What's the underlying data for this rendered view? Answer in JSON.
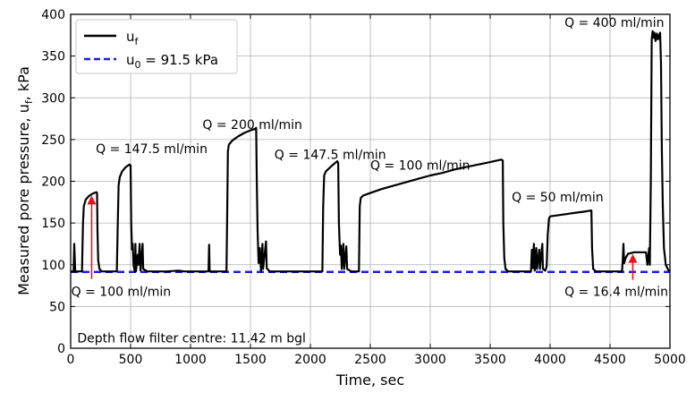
{
  "chart_data": {
    "type": "line",
    "xlabel": "Time, sec",
    "ylabel": "Measured pore pressure, u",
    "ylabel_sub": "f",
    "ylabel_unit": ", kPa",
    "xlim": [
      0,
      5000
    ],
    "ylim": [
      0,
      400
    ],
    "xticks": [
      0,
      500,
      1000,
      1500,
      2000,
      2500,
      3000,
      3500,
      4000,
      4500,
      5000
    ],
    "yticks": [
      0,
      50,
      100,
      150,
      200,
      250,
      300,
      350,
      400
    ],
    "grid": true,
    "legend_position": "top-left",
    "colors": {
      "uf": "#000000",
      "u0": "#1f1fd6",
      "arrow": "#e8141c"
    },
    "series": [
      {
        "name": "u",
        "name_sub": "f",
        "style": "solid",
        "points": [
          [
            0,
            92
          ],
          [
            25,
            92
          ],
          [
            30,
            125
          ],
          [
            38,
            92
          ],
          [
            60,
            92
          ],
          [
            95,
            92
          ],
          [
            98,
            115
          ],
          [
            103,
            150
          ],
          [
            110,
            170
          ],
          [
            125,
            178
          ],
          [
            150,
            182
          ],
          [
            180,
            185
          ],
          [
            215,
            187
          ],
          [
            220,
            186
          ],
          [
            224,
            140
          ],
          [
            230,
            105
          ],
          [
            240,
            95
          ],
          [
            260,
            92
          ],
          [
            385,
            92
          ],
          [
            392,
            140
          ],
          [
            400,
            195
          ],
          [
            410,
            205
          ],
          [
            430,
            212
          ],
          [
            460,
            217
          ],
          [
            490,
            220
          ],
          [
            500,
            219
          ],
          [
            505,
            150
          ],
          [
            512,
            118
          ],
          [
            518,
            125
          ],
          [
            525,
            100
          ],
          [
            535,
            92
          ],
          [
            540,
            125
          ],
          [
            545,
            92
          ],
          [
            560,
            112
          ],
          [
            566,
            100
          ],
          [
            575,
            125
          ],
          [
            583,
            93
          ],
          [
            600,
            125
          ],
          [
            605,
            95
          ],
          [
            640,
            92
          ],
          [
            700,
            92
          ],
          [
            800,
            92
          ],
          [
            900,
            93
          ],
          [
            950,
            92
          ],
          [
            1150,
            92
          ],
          [
            1155,
            124
          ],
          [
            1160,
            92
          ],
          [
            1300,
            92
          ],
          [
            1306,
            160
          ],
          [
            1312,
            236
          ],
          [
            1320,
            244
          ],
          [
            1350,
            249
          ],
          [
            1400,
            254
          ],
          [
            1450,
            258
          ],
          [
            1500,
            261
          ],
          [
            1540,
            263
          ],
          [
            1548,
            264
          ],
          [
            1553,
            200
          ],
          [
            1560,
            140
          ],
          [
            1568,
            102
          ],
          [
            1578,
            120
          ],
          [
            1588,
            92
          ],
          [
            1600,
            125
          ],
          [
            1605,
            95
          ],
          [
            1630,
            128
          ],
          [
            1636,
            96
          ],
          [
            1660,
            92
          ],
          [
            1750,
            92
          ],
          [
            2100,
            92
          ],
          [
            2107,
            170
          ],
          [
            2115,
            207
          ],
          [
            2130,
            212
          ],
          [
            2160,
            216
          ],
          [
            2190,
            220
          ],
          [
            2225,
            224
          ],
          [
            2232,
            222
          ],
          [
            2238,
            150
          ],
          [
            2248,
            112
          ],
          [
            2255,
            123
          ],
          [
            2262,
            95
          ],
          [
            2275,
            125
          ],
          [
            2282,
            95
          ],
          [
            2300,
            122
          ],
          [
            2307,
            95
          ],
          [
            2340,
            92
          ],
          [
            2405,
            92
          ],
          [
            2412,
            170
          ],
          [
            2420,
            180
          ],
          [
            2440,
            183
          ],
          [
            2500,
            186
          ],
          [
            2600,
            191
          ],
          [
            2700,
            195
          ],
          [
            2800,
            199
          ],
          [
            2900,
            203
          ],
          [
            3000,
            207
          ],
          [
            3100,
            210
          ],
          [
            3200,
            214
          ],
          [
            3300,
            217
          ],
          [
            3400,
            220
          ],
          [
            3500,
            223
          ],
          [
            3590,
            226
          ],
          [
            3605,
            225
          ],
          [
            3610,
            150
          ],
          [
            3618,
            108
          ],
          [
            3628,
            95
          ],
          [
            3650,
            92
          ],
          [
            3700,
            92
          ],
          [
            3840,
            92
          ],
          [
            3848,
            118
          ],
          [
            3855,
            96
          ],
          [
            3865,
            125
          ],
          [
            3872,
            93
          ],
          [
            3885,
            120
          ],
          [
            3890,
            95
          ],
          [
            3910,
            118
          ],
          [
            3915,
            95
          ],
          [
            3935,
            125
          ],
          [
            3940,
            95
          ],
          [
            3960,
            93
          ],
          [
            3972,
            98
          ],
          [
            3980,
            135
          ],
          [
            3990,
            155
          ],
          [
            4000,
            158
          ],
          [
            4100,
            160
          ],
          [
            4200,
            162
          ],
          [
            4300,
            164
          ],
          [
            4345,
            165
          ],
          [
            4350,
            120
          ],
          [
            4360,
            95
          ],
          [
            4380,
            92
          ],
          [
            4600,
            92
          ],
          [
            4606,
            105
          ],
          [
            4612,
            125
          ],
          [
            4618,
            102
          ],
          [
            4630,
            108
          ],
          [
            4650,
            113
          ],
          [
            4700,
            115
          ],
          [
            4780,
            115
          ],
          [
            4800,
            115
          ],
          [
            4812,
            100
          ],
          [
            4826,
            120
          ],
          [
            4832,
            100
          ],
          [
            4840,
            200
          ],
          [
            4848,
            370
          ],
          [
            4855,
            380
          ],
          [
            4862,
            372
          ],
          [
            4870,
            378
          ],
          [
            4880,
            368
          ],
          [
            4890,
            377
          ],
          [
            4900,
            370
          ],
          [
            4910,
            375
          ],
          [
            4918,
            378
          ],
          [
            4925,
            340
          ],
          [
            4932,
            240
          ],
          [
            4940,
            170
          ],
          [
            4950,
            120
          ],
          [
            4965,
            100
          ],
          [
            4985,
            94
          ],
          [
            5000,
            92
          ]
        ]
      },
      {
        "name": "u",
        "name_sub": "0",
        "name_suffix": " = 91.5 kPa",
        "style": "dashed",
        "points": [
          [
            0,
            91.5
          ],
          [
            5000,
            91.5
          ]
        ]
      }
    ],
    "annotations": [
      {
        "text": "Q = 100 ml/min",
        "x": 5,
        "y": 63
      },
      {
        "text": "Q = 147.5 ml/min",
        "x": 210,
        "y": 234
      },
      {
        "text": "Q = 200 ml/min",
        "x": 1100,
        "y": 263
      },
      {
        "text": "Q = 147.5 ml/min",
        "x": 1700,
        "y": 227
      },
      {
        "text": "Q = 100 ml/min",
        "x": 2500,
        "y": 214
      },
      {
        "text": "Q = 50 ml/min",
        "x": 3680,
        "y": 176
      },
      {
        "text": "Q = 400 ml/min",
        "x": 4120,
        "y": 385
      },
      {
        "text": "Q = 16.4 ml/min",
        "x": 4120,
        "y": 63
      },
      {
        "text": "Depth flow filter centre: 11.42 m bgl",
        "x": 55,
        "y": 7
      }
    ],
    "arrows": [
      {
        "x": 175,
        "y_from": 83,
        "y_to": 183
      },
      {
        "x": 4690,
        "y_from": 82,
        "y_to": 113
      }
    ]
  }
}
